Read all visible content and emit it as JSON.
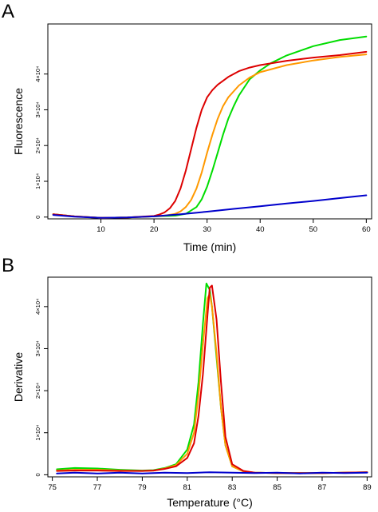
{
  "chart_data": [
    {
      "type": "line",
      "panel_label": "A",
      "xlabel": "Time (min)",
      "ylabel": "Fluorescence",
      "xlim": [
        0,
        61
      ],
      "ylim": [
        -500,
        54000
      ],
      "xticks": [
        10,
        20,
        30,
        40,
        50,
        60
      ],
      "yticks": [
        {
          "value": 0,
          "label": "0"
        },
        {
          "value": 10000,
          "label": "1×10⁴"
        },
        {
          "value": 20000,
          "label": "2×10⁴"
        },
        {
          "value": 30000,
          "label": "3×10⁴"
        },
        {
          "value": 40000,
          "label": "4×10⁴"
        }
      ],
      "series": [
        {
          "color": "#00dd00",
          "x": [
            1,
            5,
            10,
            15,
            20,
            24,
            26,
            28,
            29,
            30,
            31,
            32,
            33,
            34,
            35,
            36,
            38,
            40,
            42,
            45,
            50,
            55,
            60
          ],
          "values": [
            800,
            200,
            -200,
            -100,
            200,
            400,
            900,
            2800,
            5000,
            8500,
            13000,
            18000,
            23000,
            27500,
            31000,
            34000,
            38500,
            41000,
            43000,
            45200,
            47800,
            49500,
            50500
          ]
        },
        {
          "color": "#ff9900",
          "x": [
            1,
            5,
            10,
            15,
            20,
            22,
            24,
            25,
            26,
            27,
            28,
            29,
            30,
            31,
            32,
            33,
            34,
            36,
            38,
            40,
            45,
            50,
            55,
            60
          ],
          "values": [
            800,
            200,
            -200,
            -100,
            200,
            400,
            900,
            1600,
            2800,
            4800,
            8000,
            12500,
            18000,
            23000,
            27500,
            31000,
            33500,
            36800,
            39000,
            40500,
            42500,
            43800,
            44800,
            45500
          ]
        },
        {
          "color": "#dd0000",
          "x": [
            1,
            5,
            10,
            15,
            20,
            21,
            22,
            23,
            24,
            25,
            26,
            27,
            28,
            29,
            30,
            31,
            32,
            34,
            36,
            38,
            40,
            45,
            50,
            55,
            60
          ],
          "values": [
            800,
            200,
            -200,
            -100,
            300,
            700,
            1300,
            2500,
            4500,
            8000,
            13000,
            19000,
            25000,
            30000,
            33500,
            35500,
            37000,
            39200,
            40800,
            41800,
            42500,
            43700,
            44600,
            45300,
            46200
          ]
        },
        {
          "color": "#0000cc",
          "x": [
            1,
            5,
            10,
            15,
            20,
            25,
            30,
            35,
            40,
            45,
            50,
            55,
            60
          ],
          "values": [
            600,
            100,
            -200,
            -100,
            200,
            800,
            1500,
            2300,
            3000,
            3800,
            4500,
            5300,
            6100
          ]
        }
      ]
    },
    {
      "type": "line",
      "panel_label": "B",
      "xlabel": "Temperature (°C)",
      "ylabel": "Derivative",
      "xlim": [
        74.8,
        89.2
      ],
      "ylim": [
        -500,
        47000
      ],
      "xticks": [
        75,
        77,
        79,
        81,
        83,
        85,
        87,
        89
      ],
      "yticks": [
        {
          "value": 0,
          "label": "0"
        },
        {
          "value": 10000,
          "label": "1×10⁴"
        },
        {
          "value": 20000,
          "label": "2×10⁴"
        },
        {
          "value": 30000,
          "label": "3×10⁴"
        },
        {
          "value": 40000,
          "label": "4×10⁴"
        }
      ],
      "series": [
        {
          "color": "#00dd00",
          "x": [
            75.2,
            76,
            77,
            78,
            79,
            79.5,
            80,
            80.5,
            81,
            81.3,
            81.5,
            81.7,
            81.85,
            82,
            82.1,
            82.3,
            82.5,
            82.7,
            83,
            83.5,
            84,
            85,
            86,
            87,
            88,
            89
          ],
          "values": [
            1300,
            1600,
            1500,
            1200,
            1000,
            1100,
            1600,
            2500,
            6000,
            12000,
            22000,
            36000,
            45500,
            44000,
            40000,
            28000,
            16000,
            7000,
            2000,
            800,
            500,
            400,
            400,
            400,
            500,
            600
          ]
        },
        {
          "color": "#ff9900",
          "x": [
            75.2,
            76,
            77,
            78,
            79,
            79.5,
            80,
            80.5,
            81,
            81.3,
            81.5,
            81.7,
            81.9,
            82,
            82.1,
            82.3,
            82.5,
            82.7,
            83,
            83.5,
            84,
            85,
            86,
            87,
            88,
            89
          ],
          "values": [
            1000,
            1200,
            1200,
            1000,
            900,
            1000,
            1500,
            2300,
            5000,
            10000,
            19000,
            31000,
            42000,
            43000,
            40000,
            29000,
            16000,
            7000,
            2000,
            800,
            500,
            400,
            400,
            400,
            500,
            600
          ]
        },
        {
          "color": "#dd0000",
          "x": [
            75.2,
            76,
            77,
            78,
            79,
            79.5,
            80,
            80.5,
            81,
            81.3,
            81.5,
            81.7,
            81.9,
            82,
            82.1,
            82.3,
            82.5,
            82.7,
            83,
            83.5,
            84,
            85,
            86,
            87,
            88,
            89
          ],
          "values": [
            900,
            1000,
            1000,
            900,
            900,
            1000,
            1400,
            2000,
            4000,
            7500,
            14000,
            24000,
            38000,
            44500,
            45000,
            37000,
            22000,
            9000,
            2500,
            900,
            500,
            400,
            400,
            400,
            500,
            600
          ]
        },
        {
          "color": "#0000cc",
          "x": [
            75.2,
            76,
            77,
            78,
            79,
            80,
            81,
            82,
            83,
            84,
            85,
            86,
            87,
            88,
            89
          ],
          "values": [
            300,
            500,
            300,
            500,
            300,
            500,
            400,
            600,
            500,
            400,
            500,
            300,
            500,
            400,
            500
          ]
        }
      ]
    }
  ]
}
